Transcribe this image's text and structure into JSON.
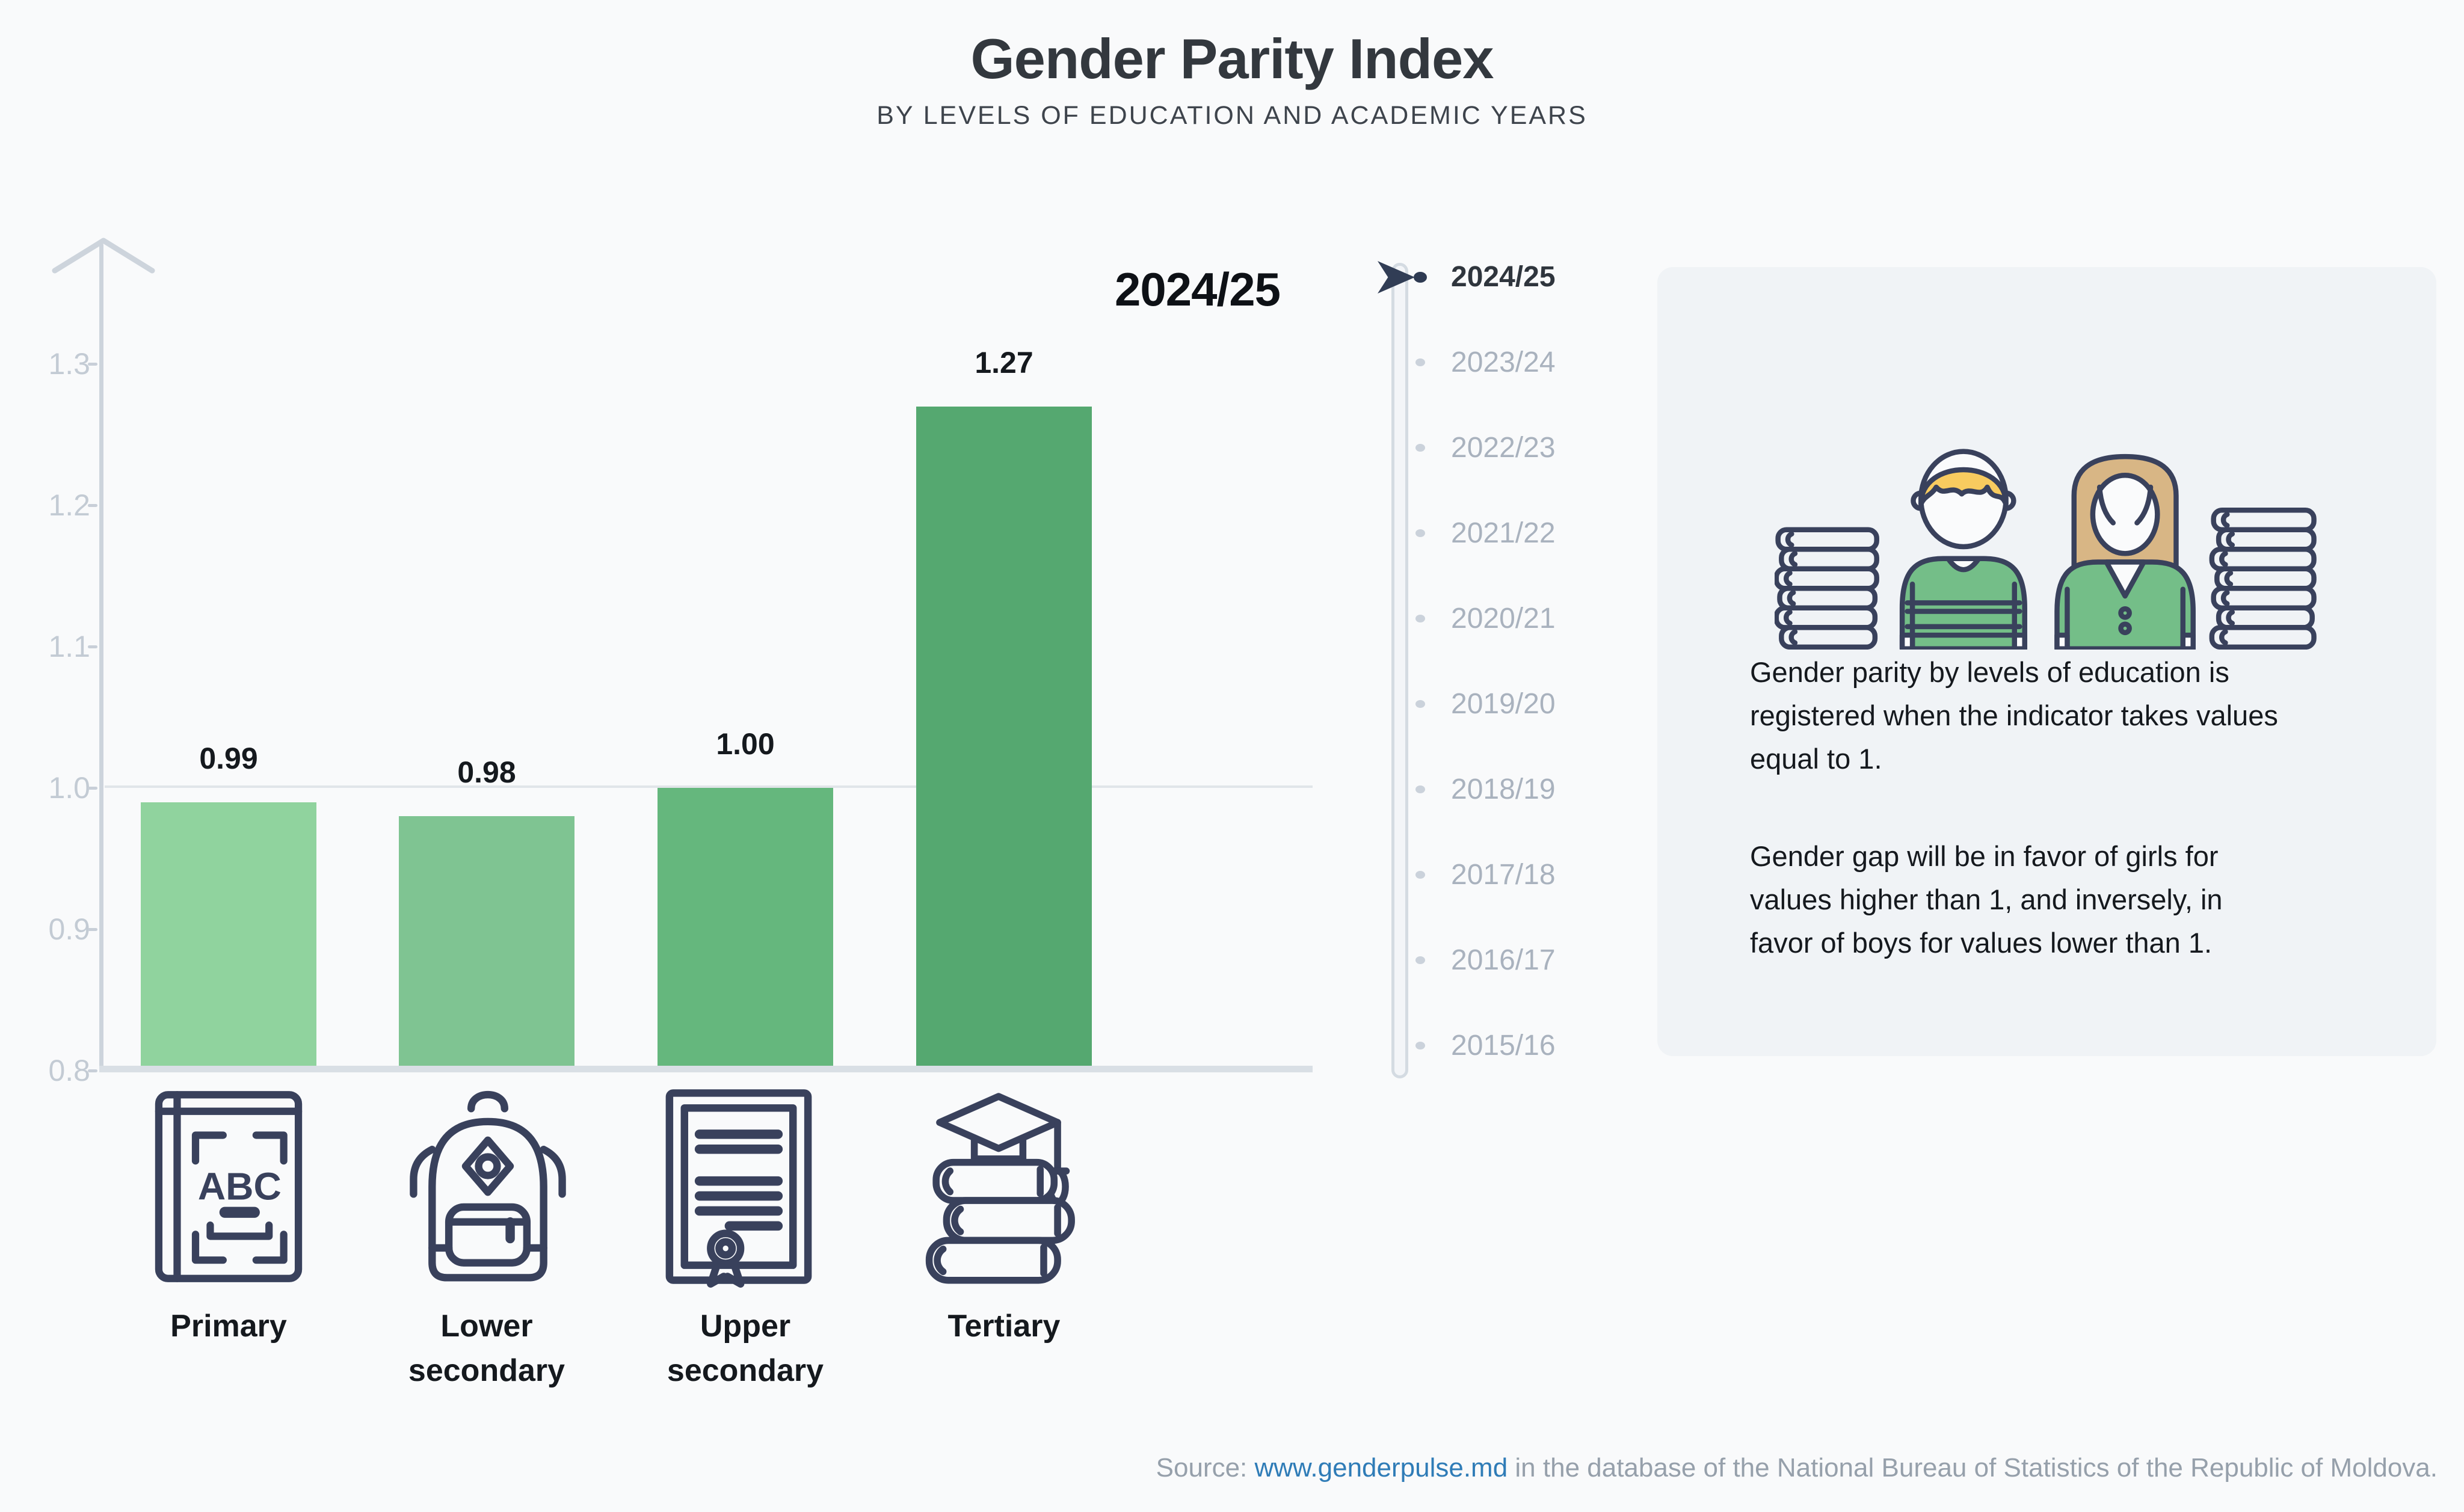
{
  "title": "Gender Parity Index",
  "subtitle": "BY LEVELS OF EDUCATION AND ACADEMIC YEARS",
  "chart_data": {
    "type": "bar",
    "title": "2024/25",
    "categories": [
      "Primary",
      "Lower secondary",
      "Upper secondary",
      "Tertiary"
    ],
    "category_labels": [
      "Primary",
      "Lower\nsecondary",
      "Upper\nsecondary",
      "Tertiary"
    ],
    "values": [
      0.99,
      0.98,
      1.0,
      1.27
    ],
    "value_labels": [
      "0.99",
      "0.98",
      "1.00",
      "1.27"
    ],
    "bar_colors": [
      "#90d39e",
      "#7fc492",
      "#65b77d",
      "#55a870"
    ],
    "xlabel": "",
    "ylabel": "",
    "ylim": [
      0.8,
      1.35
    ],
    "yticks": [
      "1.3",
      "1.2",
      "1.1",
      "1.0",
      "0.9",
      "0.8"
    ],
    "gridline_at": 1.0,
    "grid": "single line at parity value 1.0",
    "legend_position": "none"
  },
  "timeline": {
    "selected_index": 0,
    "years": [
      "2024/25",
      "2023/24",
      "2022/23",
      "2021/22",
      "2020/21",
      "2019/20",
      "2018/19",
      "2017/18",
      "2016/17",
      "2015/16"
    ]
  },
  "infobox": {
    "paragraph1": "Gender parity by levels of education is\nregistered when the indicator takes values\nequal to 1.",
    "paragraph2": "Gender gap will be in favor of girls for\nvalues higher than 1, and inversely, in\nfavor of boys for values lower than 1."
  },
  "source": {
    "prefix": "Source: ",
    "link": "www.genderpulse.md",
    "suffix": " in the database of the National Bureau of Statistics of the Republic of Moldova."
  },
  "icons": {
    "primary": "abc-book-icon",
    "lower_secondary": "backpack-icon",
    "upper_secondary": "diploma-icon",
    "tertiary": "books-graduation-cap-icon",
    "timeline_marker": "arrow-right-icon",
    "illustration": "boy-girl-with-book-stacks"
  },
  "colors": {
    "page_bg": "#f9fafb",
    "panel_bg": "#f0f3f6",
    "bar_colors": [
      "#90d39e",
      "#7fc492",
      "#65b77d",
      "#55a870"
    ],
    "axis": "#cdd4dc",
    "grid": "#e1e5e9",
    "baseline": "#d9dfe5",
    "tick_text": "#c3cbd4",
    "value_text": "#15191e",
    "navy_outline": "#39415c",
    "selected_dot": "#2e3a52",
    "selected_year_text": "#2f353d",
    "muted_year_text": "#a9b2be",
    "muted_dot": "#cbd2db",
    "link_blue": "#2f7cb7",
    "source_gray": "#96a0ab",
    "shirt_green": "#74be88",
    "boy_hair_yellow": "#f8cb5f",
    "girl_hair_tan": "#d8b685"
  }
}
